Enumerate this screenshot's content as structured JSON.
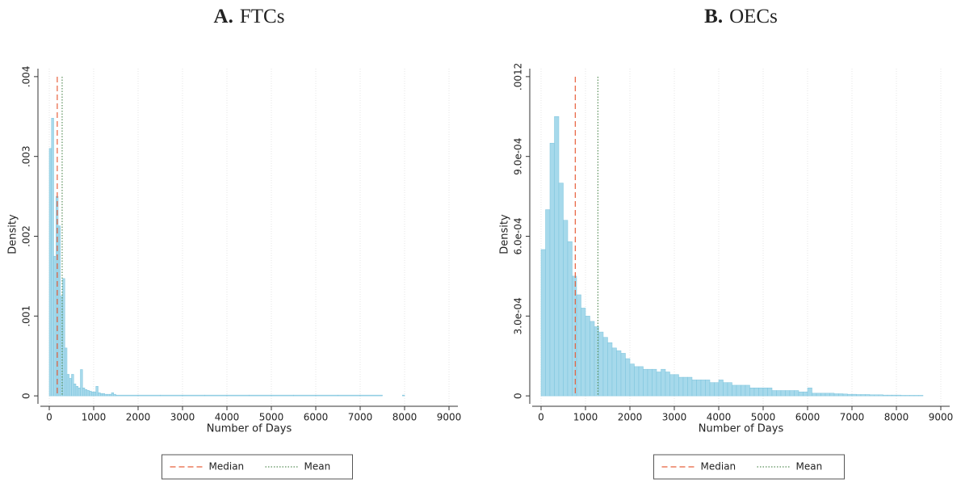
{
  "chart_data": [
    {
      "type": "histogram",
      "panel_label": "A.",
      "title": "FTCs",
      "x_label": "Number of Days",
      "y_label": "Density",
      "color": "#a6d9eb",
      "edge_color": "#7cc3dc",
      "grid": "x",
      "bins": [
        0,
        50,
        100,
        150,
        200,
        250,
        300,
        350,
        400,
        450,
        500,
        550,
        600,
        650,
        700,
        750,
        800,
        850,
        900,
        950,
        1000,
        1050,
        1100,
        1150,
        1200,
        1250,
        1300,
        1350,
        1400,
        1450,
        1500,
        2000,
        2500,
        3000,
        3500,
        4000,
        4500,
        5000,
        5500,
        6000,
        6500,
        7000,
        7500,
        7950,
        8000
      ],
      "values": [
        0.0031,
        0.00348,
        0.00175,
        0.0025,
        0.00213,
        0.00125,
        0.00147,
        0.0006,
        0.00027,
        0.00022,
        0.00027,
        0.00015,
        0.00012,
        0.0001,
        0.00033,
        0.0001,
        8e-05,
        7e-05,
        6e-05,
        5e-05,
        5e-05,
        0.00012,
        4e-05,
        3e-05,
        3e-05,
        2e-05,
        2e-05,
        2e-05,
        4e-05,
        2e-05,
        1e-05,
        1e-05,
        1e-05,
        1e-05,
        1e-05,
        1e-05,
        1e-05,
        1e-05,
        1e-05,
        1e-05,
        1e-05,
        1e-05,
        0,
        1e-05
      ],
      "reference_lines": [
        {
          "name": "Median",
          "value": 180,
          "color": "#e8603c",
          "dash": "7 4"
        },
        {
          "name": "Mean",
          "value": 290,
          "color": "#5a8f5a",
          "dash": "1.5 2"
        }
      ],
      "xlim": [
        -200,
        9200
      ],
      "xticks": [
        0,
        1000,
        2000,
        3000,
        4000,
        5000,
        6000,
        7000,
        8000,
        9000
      ],
      "ylim": [
        -0.0001,
        0.0041
      ],
      "yticks": [
        0,
        {
          "value": 0.001,
          "label": ".001"
        },
        {
          "value": 0.002,
          "label": ".002"
        },
        {
          "value": 0.003,
          "label": ".003"
        },
        {
          "value": 0.004,
          "label": ".004"
        }
      ]
    },
    {
      "type": "histogram",
      "panel_label": "B.",
      "title": "OECs",
      "x_label": "Number of Days",
      "y_label": "Density",
      "color": "#a6d9eb",
      "edge_color": "#7cc3dc",
      "grid": "x",
      "bins": [
        0,
        100,
        200,
        300,
        400,
        500,
        600,
        700,
        800,
        900,
        1000,
        1100,
        1200,
        1300,
        1400,
        1500,
        1600,
        1700,
        1800,
        1900,
        2000,
        2100,
        2200,
        2300,
        2400,
        2500,
        2600,
        2700,
        2800,
        2900,
        3000,
        3100,
        3200,
        3300,
        3400,
        3500,
        3600,
        3700,
        3800,
        3900,
        4000,
        4100,
        4200,
        4300,
        4400,
        4500,
        4600,
        4700,
        4800,
        4900,
        5000,
        5100,
        5200,
        5300,
        5400,
        5500,
        5600,
        5700,
        5800,
        5900,
        6000,
        6100,
        6200,
        6300,
        6400,
        6500,
        6600,
        6700,
        6800,
        6900,
        7000,
        7100,
        7200,
        7300,
        7400,
        7500,
        7600,
        7700,
        7800,
        7900,
        8000,
        8100,
        8200,
        8300,
        8400,
        8500,
        8600
      ],
      "values": [
        0.00055,
        0.0007,
        0.00095,
        0.00105,
        0.0008,
        0.00066,
        0.00058,
        0.00045,
        0.00038,
        0.00033,
        0.0003,
        0.00028,
        0.00026,
        0.00024,
        0.00022,
        0.0002,
        0.00018,
        0.00017,
        0.00016,
        0.00014,
        0.00012,
        0.00011,
        0.00011,
        0.0001,
        0.0001,
        0.0001,
        9e-05,
        0.0001,
        9e-05,
        8e-05,
        8e-05,
        7e-05,
        7e-05,
        7e-05,
        6e-05,
        6e-05,
        6e-05,
        6e-05,
        5e-05,
        5e-05,
        6e-05,
        5e-05,
        5e-05,
        4e-05,
        4e-05,
        4e-05,
        4e-05,
        3e-05,
        3e-05,
        3e-05,
        3e-05,
        3e-05,
        2e-05,
        2e-05,
        2e-05,
        2e-05,
        2e-05,
        2e-05,
        1.5e-05,
        1.5e-05,
        3e-05,
        1e-05,
        1e-05,
        1e-05,
        1e-05,
        1e-05,
        8e-06,
        8e-06,
        7e-06,
        6e-06,
        6e-06,
        5e-06,
        5e-06,
        5e-06,
        4e-06,
        4e-06,
        4e-06,
        3e-06,
        3e-06,
        3e-06,
        3e-06,
        2e-06,
        2e-06,
        2e-06,
        2e-06,
        2e-06
      ],
      "reference_lines": [
        {
          "name": "Median",
          "value": 770,
          "color": "#e8603c",
          "dash": "7 4"
        },
        {
          "name": "Mean",
          "value": 1280,
          "color": "#5a8f5a",
          "dash": "1.5 2"
        }
      ],
      "xlim": [
        -200,
        9200
      ],
      "xticks": [
        0,
        1000,
        2000,
        3000,
        4000,
        5000,
        6000,
        7000,
        8000,
        9000
      ],
      "ylim": [
        -3e-05,
        0.00123
      ],
      "yticks": [
        0,
        {
          "value": 0.0003,
          "label": "3.0e-04"
        },
        {
          "value": 0.0006,
          "label": "6.0e-04"
        },
        {
          "value": 0.0009,
          "label": "9.0e-04"
        },
        {
          "value": 0.0012,
          "label": ".0012"
        }
      ]
    }
  ]
}
